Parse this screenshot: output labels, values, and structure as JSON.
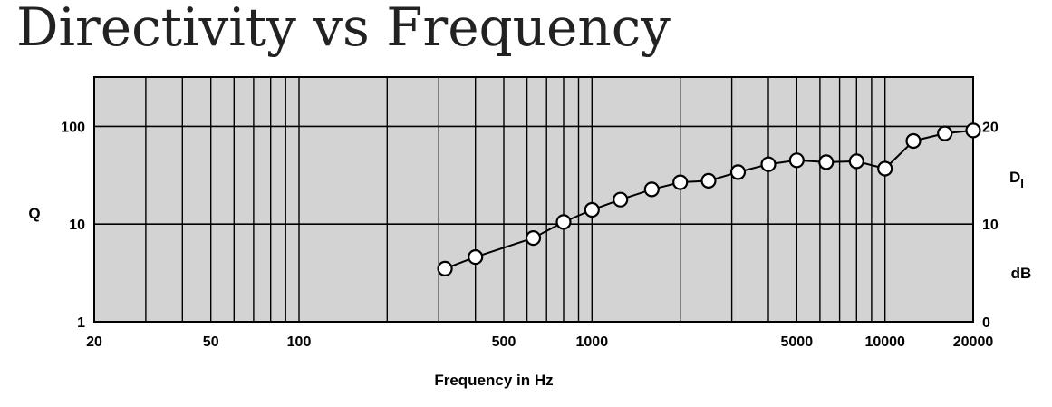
{
  "chart_data": {
    "type": "line",
    "title": "Directivity vs Frequency",
    "xlabel": "Frequency in Hz",
    "ylabel": "Q",
    "right_ylabel_main": "D",
    "right_ylabel_sub": "I",
    "right_ylabel_unit": "dB",
    "x_scale": "log",
    "y_scale": "log",
    "xlim": [
      20,
      20000
    ],
    "ylim": [
      1,
      320
    ],
    "x_ticks": [
      {
        "value": 20,
        "label": "20"
      },
      {
        "value": 50,
        "label": "50"
      },
      {
        "value": 100,
        "label": "100"
      },
      {
        "value": 500,
        "label": "500"
      },
      {
        "value": 1000,
        "label": "1000"
      },
      {
        "value": 5000,
        "label": "5000"
      },
      {
        "value": 10000,
        "label": "10000"
      },
      {
        "value": 20000,
        "label": "20000"
      }
    ],
    "y_ticks": [
      {
        "value": 1,
        "label": "1"
      },
      {
        "value": 10,
        "label": "10"
      },
      {
        "value": 100,
        "label": "100"
      }
    ],
    "right_y_ticks": [
      {
        "value": 1,
        "label": "0"
      },
      {
        "value": 10,
        "label": "10"
      },
      {
        "value": 100,
        "label": "20"
      }
    ],
    "grid": true,
    "background_color": "#d3d3d3",
    "line_color": "#000000",
    "marker_fill": "#ffffff",
    "series": [
      {
        "x": [
          315,
          400,
          630,
          800,
          1000,
          1250,
          1600,
          2000,
          2500,
          3150,
          4000,
          5000,
          6300,
          8000,
          10000,
          12500,
          16000,
          20000
        ],
        "y": [
          3.5,
          4.6,
          7.2,
          10.5,
          14,
          17.8,
          22.7,
          26.8,
          27.8,
          34,
          41,
          45,
          43,
          44,
          37,
          71,
          85,
          91
        ]
      }
    ]
  }
}
